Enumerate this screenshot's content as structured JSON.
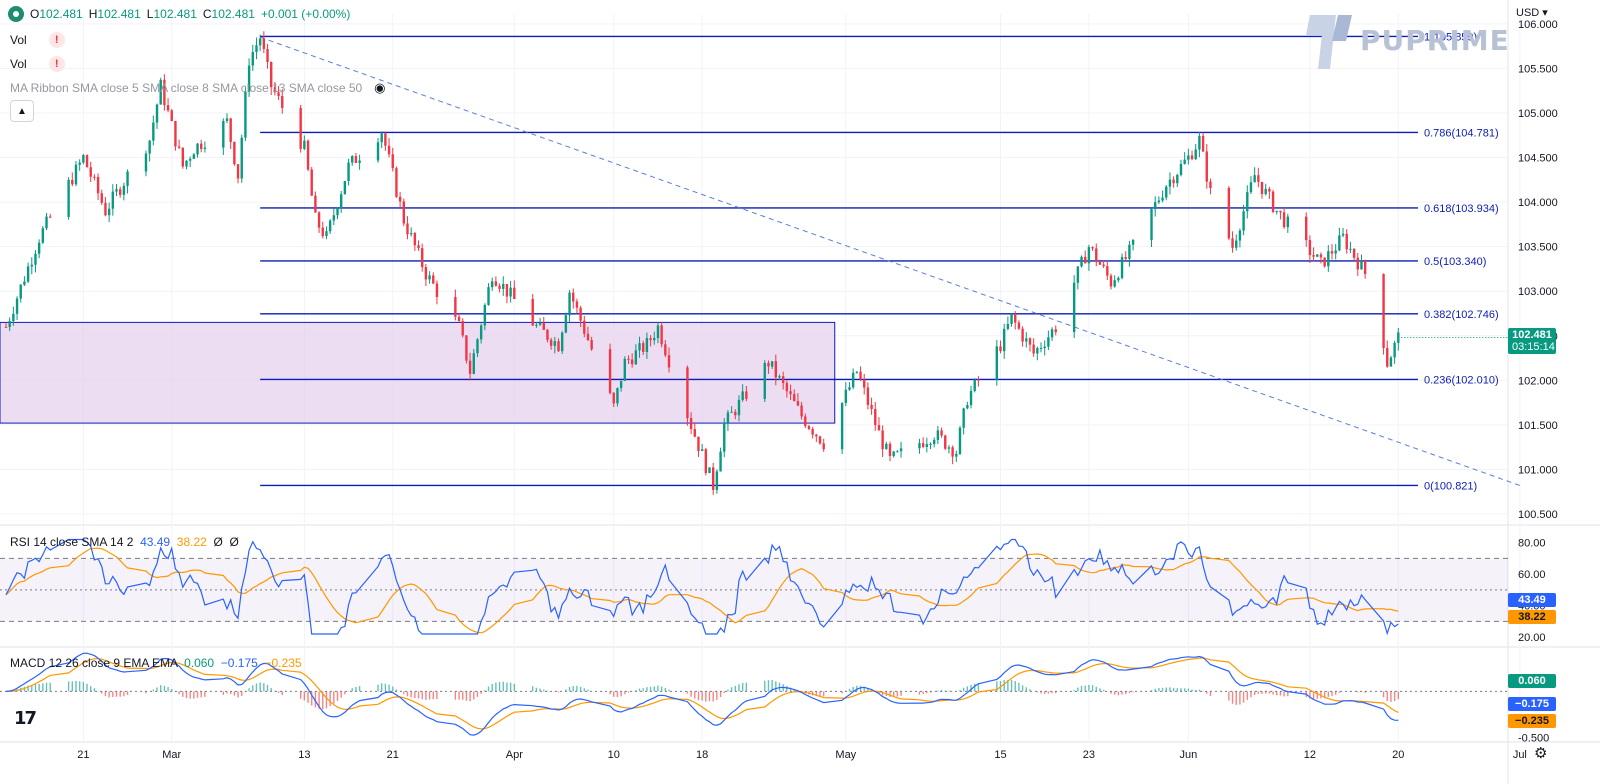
{
  "header": {
    "symbol_dot": "status-dot",
    "open_label": "O",
    "open": "102.481",
    "high_label": "H",
    "high": "102.481",
    "low_label": "L",
    "low": "102.481",
    "close_label": "C",
    "close": "102.481",
    "change": "+0.001 (+0.00%)",
    "vol_rows": [
      {
        "label": "Vol",
        "warn": "!"
      },
      {
        "label": "Vol",
        "warn": "!"
      }
    ],
    "ma_ribbon": "MA Ribbon SMA close 5 SMA close 8 SMA close 13 SMA close 50",
    "eye_icon": "eye-off-icon",
    "collapse_icon": "chevron-up-icon"
  },
  "brand": {
    "name": "PUPRIME"
  },
  "currency": "USD",
  "colors": {
    "up": "#089981",
    "down": "#f23645",
    "fib": "#0c1db5",
    "zone": "#e6d1ee",
    "trend": "#5b7fd6",
    "rsi": "#2962ff",
    "rsi_ma": "#ff9800",
    "macd": "#2962ff",
    "signal": "#ff9800"
  },
  "chart_data": [
    {
      "type": "candlestick",
      "title": "",
      "ylim": [
        100.5,
        106.2
      ],
      "y_ticks": [
        "106.000",
        "105.500",
        "105.000",
        "104.500",
        "104.000",
        "103.500",
        "103.000",
        "102.500",
        "102.000",
        "101.500",
        "101.000",
        "100.500"
      ],
      "x_ticks": [
        "21",
        "Mar",
        "13",
        "21",
        "Apr",
        "10",
        "18",
        "May",
        "15",
        "23",
        "Jun",
        "12",
        "20",
        "Jul"
      ],
      "date_range": [
        "2023-02-14",
        "2023-06-20"
      ],
      "path_points": [
        [
          "2023-02-14",
          102.6
        ],
        [
          "2023-02-17",
          103.6
        ],
        [
          "2023-02-21",
          104.5
        ],
        [
          "2023-02-23",
          103.9
        ],
        [
          "2023-02-27",
          104.7
        ],
        [
          "2023-02-28",
          105.3
        ],
        [
          "2023-03-02",
          104.4
        ],
        [
          "2023-03-03",
          104.6
        ],
        [
          "2023-03-06",
          104.9
        ],
        [
          "2023-03-07",
          104.3
        ],
        [
          "2023-03-08",
          105.6
        ],
        [
          "2023-03-09",
          105.85
        ],
        [
          "2023-03-10",
          105.3
        ],
        [
          "2023-03-13",
          104.6
        ],
        [
          "2023-03-14",
          103.8
        ],
        [
          "2023-03-15",
          103.6
        ],
        [
          "2023-03-17",
          104.4
        ],
        [
          "2023-03-20",
          104.8
        ],
        [
          "2023-03-22",
          103.8
        ],
        [
          "2023-03-24",
          103.2
        ],
        [
          "2023-03-27",
          102.6
        ],
        [
          "2023-03-28",
          102.1
        ],
        [
          "2023-03-30",
          103.2
        ],
        [
          "2023-04-03",
          102.6
        ],
        [
          "2023-04-05",
          102.4
        ],
        [
          "2023-04-06",
          103.0
        ],
        [
          "2023-04-10",
          101.7
        ],
        [
          "2023-04-11",
          102.2
        ],
        [
          "2023-04-13",
          102.4
        ],
        [
          "2023-04-14",
          102.6
        ],
        [
          "2023-04-17",
          101.5
        ],
        [
          "2023-04-19",
          100.82
        ],
        [
          "2023-04-20",
          101.5
        ],
        [
          "2023-04-24",
          102.2
        ],
        [
          "2023-04-27",
          101.6
        ],
        [
          "2023-04-29",
          101.3
        ],
        [
          "2023-05-02",
          102.1
        ],
        [
          "2023-05-04",
          101.4
        ],
        [
          "2023-05-05",
          101.1
        ],
        [
          "2023-05-09",
          101.4
        ],
        [
          "2023-05-11",
          101.2
        ],
        [
          "2023-05-12",
          101.8
        ],
        [
          "2023-05-15",
          102.4
        ],
        [
          "2023-05-16",
          102.7
        ],
        [
          "2023-05-18",
          102.3
        ],
        [
          "2023-05-20",
          102.6
        ],
        [
          "2023-05-22",
          103.2
        ],
        [
          "2023-05-23",
          103.5
        ],
        [
          "2023-05-25",
          103.1
        ],
        [
          "2023-05-27",
          103.5
        ],
        [
          "2023-05-30",
          104.2
        ],
        [
          "2023-06-01",
          104.5
        ],
        [
          "2023-06-02",
          104.7
        ],
        [
          "2023-06-03",
          104.1
        ],
        [
          "2023-06-05",
          103.5
        ],
        [
          "2023-06-07",
          104.3
        ],
        [
          "2023-06-09",
          103.9
        ],
        [
          "2023-06-11",
          103.6
        ],
        [
          "2023-06-13",
          103.3
        ],
        [
          "2023-06-15",
          103.6
        ],
        [
          "2023-06-17",
          103.2
        ],
        [
          "2023-06-18",
          102.9
        ],
        [
          "2023-06-19",
          102.2
        ],
        [
          "2023-06-20",
          102.481
        ]
      ],
      "fib_levels": [
        {
          "ratio": "1",
          "value": 105.859,
          "label": "1(105.859)"
        },
        {
          "ratio": "0.786",
          "value": 104.781,
          "label": "0.786(104.781)"
        },
        {
          "ratio": "0.618",
          "value": 103.934,
          "label": "0.618(103.934)"
        },
        {
          "ratio": "0.5",
          "value": 103.34,
          "label": "0.5(103.340)"
        },
        {
          "ratio": "0.382",
          "value": 102.746,
          "label": "0.382(102.746)"
        },
        {
          "ratio": "0.236",
          "value": 102.01,
          "label": "0.236(102.010)"
        },
        {
          "ratio": "0",
          "value": 100.821,
          "label": "0(100.821)"
        }
      ],
      "zone": {
        "top": 102.65,
        "bottom": 101.52,
        "x_from": "2023-02-14",
        "x_to": "2023-04-30"
      },
      "trendline": [
        [
          "2023-03-09",
          105.85
        ],
        [
          "2023-07-01",
          100.82
        ]
      ],
      "last_price": {
        "value": "102.481",
        "countdown": "03:15:14"
      }
    },
    {
      "type": "line",
      "title": "RSI 14 close SMA 14 2",
      "ylim": [
        15,
        88
      ],
      "y_ticks": [
        "80.00",
        "60.00",
        "40.00",
        "20.00"
      ],
      "bands": [
        70,
        50,
        30
      ],
      "series": [
        {
          "name": "RSI",
          "value": "43.49",
          "color": "#2962ff"
        },
        {
          "name": "RSI-based MA",
          "value": "38.22",
          "color": "#ff9800"
        }
      ],
      "extra_values": [
        "Ø",
        "Ø"
      ]
    },
    {
      "type": "line",
      "title": "MACD 12 26 close 9 EMA EMA",
      "ylim": [
        -0.55,
        0.45
      ],
      "y_ticks": [
        "-0.500"
      ],
      "series": [
        {
          "name": "Histogram",
          "value": "0.060",
          "color": "#089981"
        },
        {
          "name": "MACD",
          "value": "−0.175",
          "color": "#2962ff"
        },
        {
          "name": "Signal",
          "value": "−0.235",
          "color": "#ff9800"
        }
      ]
    }
  ]
}
